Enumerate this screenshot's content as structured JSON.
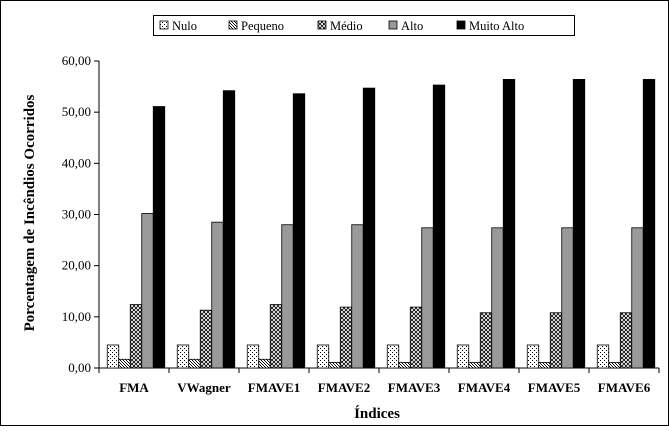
{
  "chart_data": {
    "type": "bar",
    "xlabel": "Índices",
    "ylabel": "Porcentagem de Incêndios Ocorridos",
    "ylim": [
      0,
      60
    ],
    "yticks": [
      "0,00",
      "10,00",
      "20,00",
      "30,00",
      "40,00",
      "50,00",
      "60,00"
    ],
    "ytick_values": [
      0,
      10,
      20,
      30,
      40,
      50,
      60
    ],
    "categories": [
      "FMA",
      "VWagner",
      "FMAVE1",
      "FMAVE2",
      "FMAVE3",
      "FMAVE4",
      "FMAVE5",
      "FMAVE6"
    ],
    "legend_position": "top",
    "grid": false,
    "series": [
      {
        "name": "Nulo",
        "pattern": "dots",
        "color": "#ffffff",
        "values": [
          4.5,
          4.5,
          4.5,
          4.5,
          4.5,
          4.5,
          4.5,
          4.5
        ]
      },
      {
        "name": "Pequeno",
        "pattern": "dense-dots",
        "color": "#ffffff",
        "values": [
          1.7,
          1.7,
          1.7,
          1.1,
          1.1,
          1.1,
          1.1,
          1.1
        ]
      },
      {
        "name": "Médio",
        "pattern": "crosshatch",
        "color": "#ffffff",
        "values": [
          12.4,
          11.3,
          12.4,
          11.9,
          11.9,
          10.8,
          10.8,
          10.8
        ]
      },
      {
        "name": "Alto",
        "pattern": "solid",
        "color": "#999999",
        "values": [
          30.2,
          28.5,
          28.0,
          28.0,
          27.4,
          27.4,
          27.4,
          27.4
        ]
      },
      {
        "name": "Muito Alto",
        "pattern": "solid",
        "color": "#000000",
        "values": [
          51.1,
          54.2,
          53.6,
          54.7,
          55.3,
          56.4,
          56.4,
          56.4
        ]
      }
    ]
  }
}
